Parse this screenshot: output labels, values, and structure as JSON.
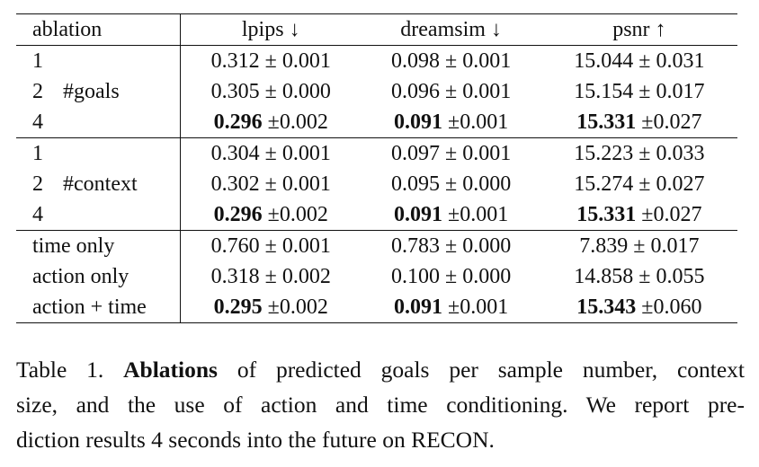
{
  "table": {
    "header": [
      "ablation",
      "lpips ↓",
      "dreamsim ↓",
      "psnr ↑"
    ],
    "groups": [
      {
        "name": "#goals",
        "rows": [
          {
            "label": "1",
            "cells": [
              "0.312 ± 0.001",
              "0.098 ± 0.001",
              "15.044 ± 0.031"
            ]
          },
          {
            "label": "2",
            "cells": [
              "0.305 ± 0.000",
              "0.096 ± 0.001",
              "15.154 ± 0.017"
            ]
          },
          {
            "label": "4",
            "cells": [
              {
                "bold": "0.296",
                "text": "±0.002"
              },
              {
                "bold": "0.091",
                "text": "±0.001"
              },
              {
                "bold": "15.331",
                "text": "±0.027"
              }
            ]
          }
        ]
      },
      {
        "name": "#context",
        "rows": [
          {
            "label": "1",
            "cells": [
              "0.304 ± 0.001",
              "0.097 ± 0.001",
              "15.223 ± 0.033"
            ]
          },
          {
            "label": "2",
            "cells": [
              "0.302 ± 0.001",
              "0.095 ± 0.000",
              "15.274 ± 0.027"
            ]
          },
          {
            "label": "4",
            "cells": [
              {
                "bold": "0.296",
                "text": "±0.002"
              },
              {
                "bold": "0.091",
                "text": "±0.001"
              },
              {
                "bold": "15.331",
                "text": "±0.027"
              }
            ]
          }
        ]
      },
      {
        "rows": [
          {
            "label": "time only",
            "cells": [
              "0.760 ± 0.001",
              "0.783 ± 0.000",
              "7.839 ± 0.017"
            ]
          },
          {
            "label": "action only",
            "cells": [
              "0.318 ± 0.002",
              "0.100 ± 0.000",
              "14.858 ± 0.055"
            ]
          },
          {
            "label": "action + time",
            "cells": [
              {
                "bold": "0.295",
                "text": "±0.002"
              },
              {
                "bold": "0.091",
                "text": "±0.001"
              },
              {
                "bold": "15.343",
                "text": "±0.060"
              }
            ]
          }
        ]
      }
    ]
  },
  "caption": {
    "label": "Table 1.",
    "bold": "Ablations",
    "lines": [
      "of predicted goals per sample number, context",
      "size, and the use of action and time conditioning. We report pre-",
      "diction results 4 seconds into the future on RECON."
    ]
  }
}
